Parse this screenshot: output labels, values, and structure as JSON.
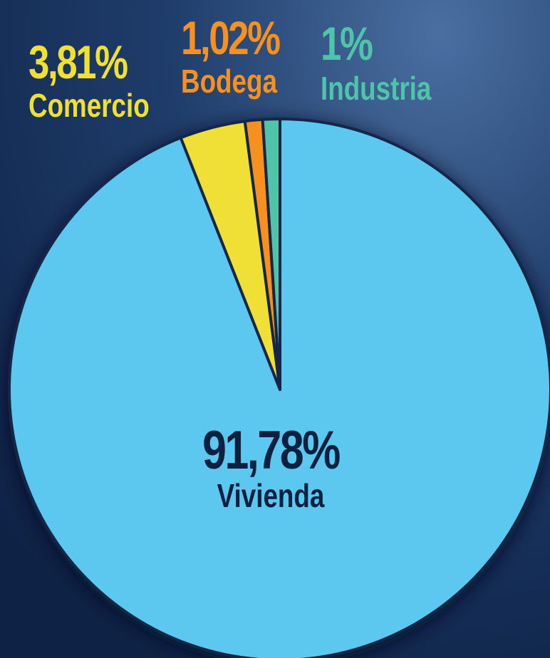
{
  "chart_data": {
    "type": "pie",
    "categories": [
      "Vivienda",
      "Comercio",
      "Bodega",
      "Industria"
    ],
    "values": [
      91.78,
      3.81,
      1.02,
      1
    ],
    "value_labels": [
      "91,78%",
      "3,81%",
      "1,02%",
      "1%"
    ],
    "colors": [
      "#5bc8f0",
      "#f0e034",
      "#f7901e",
      "#4fc4a8"
    ]
  }
}
